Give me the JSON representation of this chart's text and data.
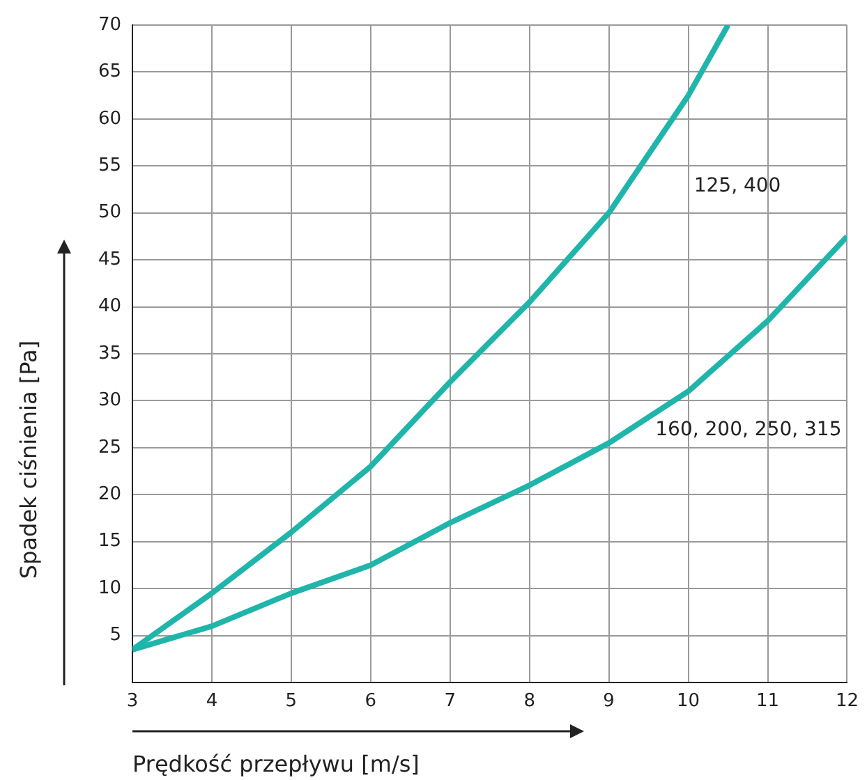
{
  "chart_data": {
    "type": "line",
    "xlabel": "Prędkość przepływu [m/s]",
    "ylabel": "Spadek ciśnienia [Pa]",
    "xlim": [
      3,
      12
    ],
    "xticks": [
      3,
      4,
      5,
      6,
      7,
      8,
      9,
      10,
      11,
      12
    ],
    "ylim": [
      0,
      70
    ],
    "yticks": [
      5,
      10,
      15,
      20,
      25,
      30,
      35,
      40,
      45,
      50,
      55,
      60,
      65,
      70
    ],
    "grid": true,
    "legend": false,
    "marker": "none",
    "line_style": "solid",
    "series": [
      {
        "name": "125, 400",
        "color": "#20b5aa",
        "x": [
          3,
          4,
          5,
          6,
          7,
          8,
          9,
          10,
          10.5
        ],
        "values": [
          3.5,
          9.5,
          16,
          23,
          32,
          40.5,
          50,
          62.5,
          70
        ]
      },
      {
        "name": "160, 200, 250, 315",
        "color": "#20b5aa",
        "x": [
          3,
          4,
          5,
          6,
          7,
          8,
          9,
          10,
          11,
          12
        ],
        "values": [
          3.5,
          6,
          9.5,
          12.5,
          17,
          21,
          25.5,
          31,
          38.5,
          47.5
        ]
      }
    ]
  }
}
